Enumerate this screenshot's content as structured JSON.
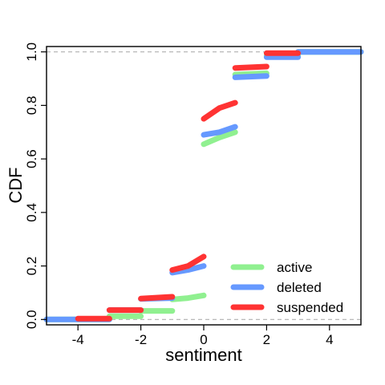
{
  "chart_data": {
    "type": "line",
    "xlabel": "sentiment",
    "ylabel": "CDF",
    "xlim": [
      -5,
      5
    ],
    "ylim": [
      -0.02,
      1.02
    ],
    "x_ticks": [
      -4,
      -2,
      0,
      2,
      4
    ],
    "x_tick_labels": [
      "-4",
      "-2",
      "0",
      "2",
      "4"
    ],
    "y_ticks": [
      0.0,
      0.2,
      0.4,
      0.6,
      0.8,
      1.0
    ],
    "y_tick_labels": [
      "0.0",
      "0.2",
      "0.4",
      "0.6",
      "0.8",
      "1.0"
    ],
    "reference_lines_y": [
      0,
      1
    ],
    "grid": false,
    "legend_position": "bottom-right",
    "series": [
      {
        "name": "active",
        "color": "#90F090",
        "segments": [
          [
            [
              -5,
              0.0
            ],
            [
              -3,
              0.0
            ]
          ],
          [
            [
              -3,
              0.012
            ],
            [
              -2,
              0.012
            ]
          ],
          [
            [
              -2,
              0.032
            ],
            [
              -1,
              0.032
            ]
          ],
          [
            [
              -1,
              0.075
            ],
            [
              -0.5,
              0.08
            ],
            [
              0,
              0.09
            ]
          ],
          [
            [
              0,
              0.655
            ],
            [
              0.5,
              0.68
            ],
            [
              1,
              0.7
            ]
          ],
          [
            [
              1,
              0.915
            ],
            [
              2,
              0.92
            ]
          ],
          [
            [
              2,
              0.985
            ],
            [
              3,
              0.985
            ]
          ],
          [
            [
              3,
              1.0
            ],
            [
              5,
              1.0
            ]
          ]
        ]
      },
      {
        "name": "deleted",
        "color": "#6699FF",
        "segments": [
          [
            [
              -5,
              0.0
            ],
            [
              -3,
              0.0
            ]
          ],
          [
            [
              -3,
              0.035
            ],
            [
              -2,
              0.035
            ]
          ],
          [
            [
              -2,
              0.077
            ],
            [
              -1,
              0.08
            ]
          ],
          [
            [
              -1,
              0.175
            ],
            [
              -0.5,
              0.185
            ],
            [
              0,
              0.2
            ]
          ],
          [
            [
              0,
              0.69
            ],
            [
              0.5,
              0.7
            ],
            [
              1,
              0.72
            ]
          ],
          [
            [
              1,
              0.905
            ],
            [
              2,
              0.91
            ]
          ],
          [
            [
              2,
              0.98
            ],
            [
              3,
              0.98
            ]
          ],
          [
            [
              3,
              1.0
            ],
            [
              5,
              1.0
            ]
          ]
        ]
      },
      {
        "name": "suspended",
        "color": "#FF3333",
        "segments": [
          [
            [
              -4,
              0.003
            ],
            [
              -3,
              0.003
            ]
          ],
          [
            [
              -3,
              0.035
            ],
            [
              -2,
              0.035
            ]
          ],
          [
            [
              -2,
              0.078
            ],
            [
              -1,
              0.085
            ]
          ],
          [
            [
              -1,
              0.185
            ],
            [
              -0.5,
              0.2
            ],
            [
              0,
              0.235
            ]
          ],
          [
            [
              0,
              0.75
            ],
            [
              0.5,
              0.79
            ],
            [
              1,
              0.81
            ]
          ],
          [
            [
              1,
              0.94
            ],
            [
              2,
              0.945
            ]
          ],
          [
            [
              2,
              0.995
            ],
            [
              3,
              0.995
            ]
          ]
        ]
      }
    ]
  }
}
